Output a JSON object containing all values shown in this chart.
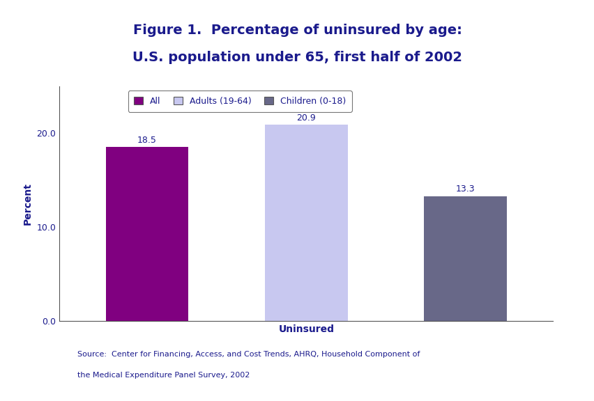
{
  "title_line1": "Figure 1.  Percentage of uninsured by age:",
  "title_line2": "U.S. population under 65, first half of 2002",
  "title_color": "#1a1a8c",
  "title_fontsize": 14,
  "bar_labels": [
    "All",
    "Adults (19-64)",
    "Children (0-18)"
  ],
  "bar_values": [
    18.5,
    20.9,
    13.3
  ],
  "bar_colors": [
    "#800080",
    "#c8c8f0",
    "#686888"
  ],
  "xlabel": "Uninsured",
  "ylabel": "Percent",
  "label_color": "#1a1a8c",
  "ylim": [
    0,
    25
  ],
  "yticks": [
    0.0,
    10.0,
    20.0
  ],
  "value_label_color": "#1a1a8c",
  "legend_colors": [
    "#800080",
    "#c8c8f0",
    "#686888"
  ],
  "legend_labels": [
    "All",
    "Adults (19-64)",
    "Children (0-18)"
  ],
  "source_text_line1": "Source:  Center for Financing, Access, and Cost Trends, AHRQ, Household Component of",
  "source_text_line2": "the Medical Expenditure Panel Survey, 2002",
  "source_color": "#1a1a8c",
  "background_color": "#ffffff",
  "accent_color": "#1a1a8c",
  "axis_label_fontsize": 10,
  "tick_label_fontsize": 9,
  "value_fontsize": 9,
  "legend_fontsize": 9,
  "source_fontsize": 8
}
